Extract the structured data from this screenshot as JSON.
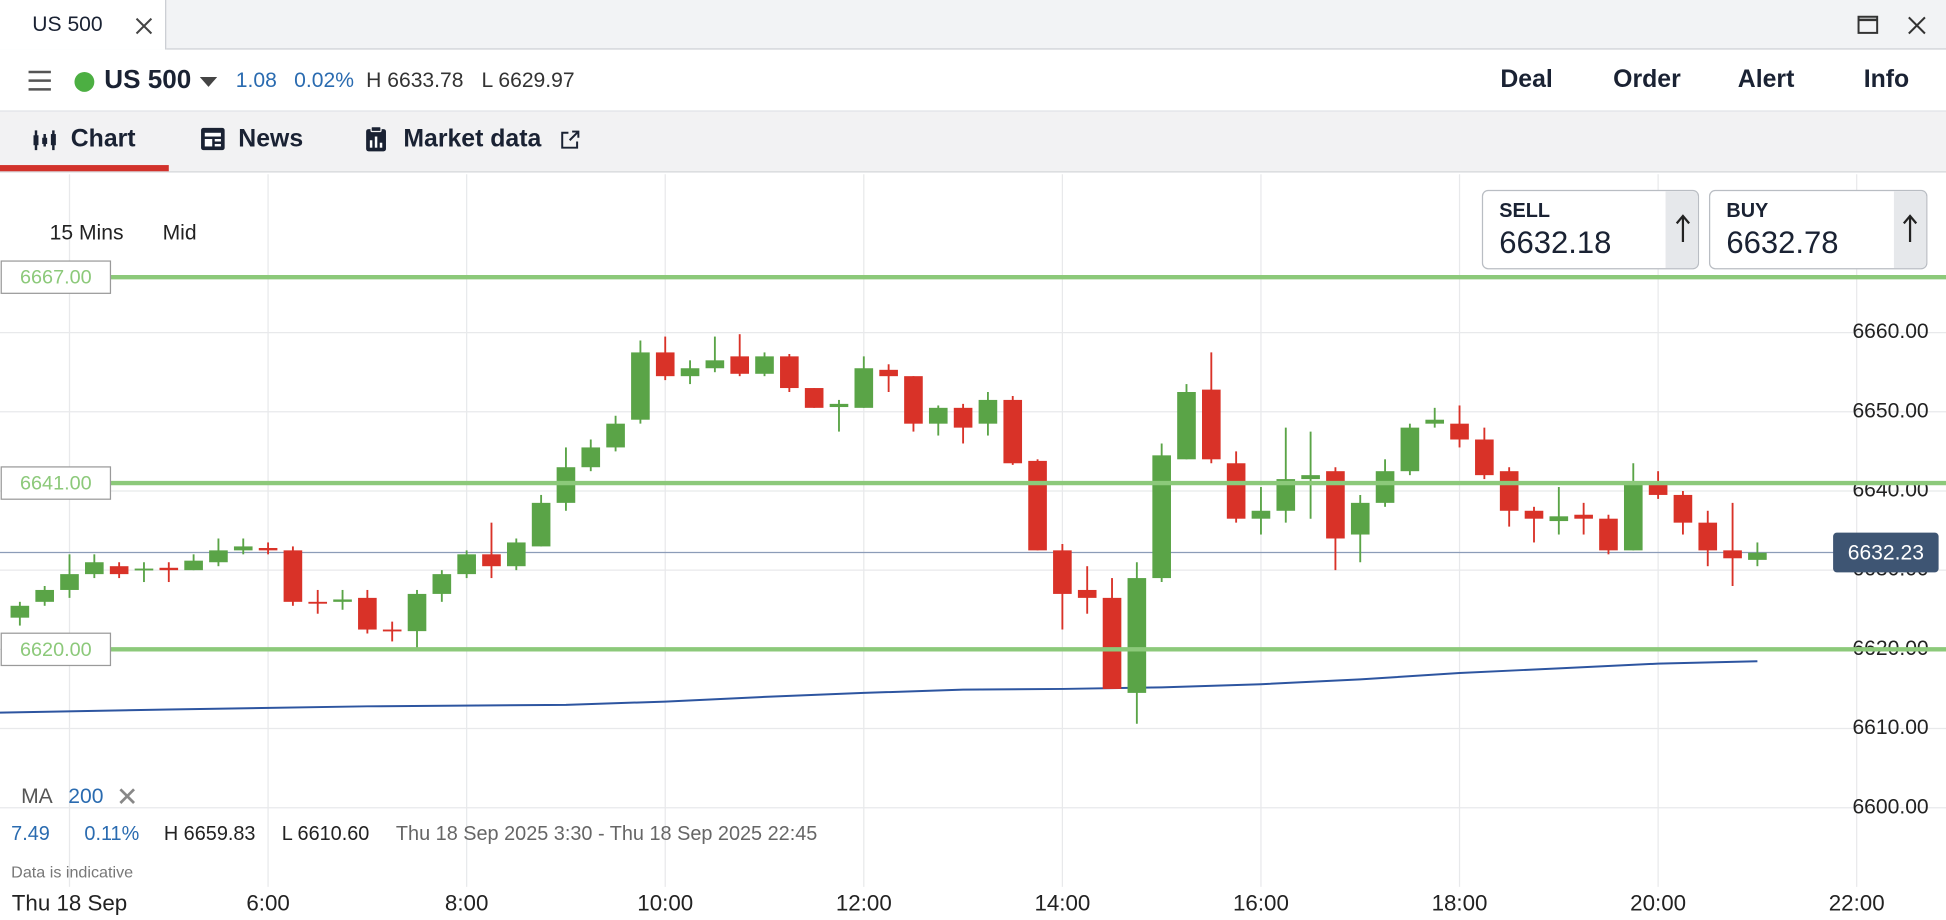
{
  "window_tab": {
    "title": "US 500"
  },
  "header": {
    "instrument": "US 500",
    "change": "1.08",
    "change_pct": "0.02%",
    "high": "H 6633.78",
    "low": "L 6629.97",
    "actions": [
      "Deal",
      "Order",
      "Alert",
      "Info"
    ]
  },
  "tabs": [
    "Chart",
    "News",
    "Market data"
  ],
  "toolbar": {
    "interval": "15 Mins",
    "price_type": "Mid"
  },
  "quotes": {
    "sell_label": "SELL",
    "sell": "6632.18",
    "buy_label": "BUY",
    "buy": "6632.78"
  },
  "indicator": {
    "name": "MA",
    "period": "200"
  },
  "stats": {
    "change": "7.49",
    "change_pct": "0.11%",
    "high": "H 6659.83",
    "low": "L 6610.60",
    "range": "Thu 18 Sep 2025 3:30 - Thu 18 Sep 2025 22:45"
  },
  "disclaimer": "Data is indicative",
  "chart_data": {
    "type": "candlestick",
    "up_color": "#5aa447",
    "down_color": "#d93228",
    "x": [
      3.5,
      3.75,
      4,
      4.25,
      4.5,
      4.75,
      5,
      5.25,
      5.5,
      5.75,
      6,
      6.25,
      6.5,
      6.75,
      7,
      7.25,
      7.5,
      7.75,
      8,
      8.25,
      8.5,
      8.75,
      9,
      9.25,
      9.5,
      9.75,
      10,
      10.25,
      10.5,
      10.75,
      11,
      11.25,
      11.5,
      11.75,
      12,
      12.25,
      12.5,
      12.75,
      13,
      13.25,
      13.5,
      13.75,
      14,
      14.25,
      14.5,
      14.75,
      15,
      15.25,
      15.5,
      15.75,
      16,
      16.25,
      16.5,
      16.75,
      17,
      17.25,
      17.5,
      17.75,
      18,
      18.25,
      18.5,
      18.75,
      19,
      19.25,
      19.5,
      19.75,
      20,
      20.25,
      20.5,
      20.75,
      21
    ],
    "open": [
      6624,
      6626,
      6627.5,
      6629.5,
      6630.5,
      6630,
      6630.3,
      6630,
      6631,
      6632.5,
      6632.8,
      6632.5,
      6626,
      6626,
      6626.5,
      6622.5,
      6622.3,
      6627,
      6629.5,
      6632,
      6630.5,
      6633,
      6638.5,
      6643,
      6645.5,
      6649,
      6657.5,
      6654.5,
      6655.5,
      6657,
      6654.8,
      6657,
      6653,
      6650.6,
      6650.5,
      6655.3,
      6654.5,
      6648.5,
      6650.5,
      6648.5,
      6651.5,
      6643.8,
      6632.5,
      6627.5,
      6626.5,
      6614.5,
      6629,
      6644,
      6652.8,
      6643.5,
      6636.5,
      6637.5,
      6641.5,
      6642.5,
      6634.5,
      6638.5,
      6642.5,
      6648.5,
      6648.5,
      6646.5,
      6642.5,
      6637.5,
      6636.2,
      6637,
      6636.5,
      6632.5,
      6640.8,
      6639.5,
      6636,
      6632.5,
      6631.3
    ],
    "high": [
      6626,
      6628,
      6632,
      6632,
      6631,
      6631,
      6631,
      6632,
      6634,
      6634,
      6633.5,
      6633,
      6627.5,
      6627.5,
      6627.5,
      6623.5,
      6627.5,
      6630,
      6632.5,
      6636,
      6634,
      6639.5,
      6645.5,
      6646.5,
      6649.5,
      6659,
      6659.5,
      6656.5,
      6659.5,
      6659.8,
      6657.5,
      6657.3,
      6653,
      6651.5,
      6657,
      6656,
      6654.5,
      6650.8,
      6651,
      6652.5,
      6652,
      6644,
      6633.3,
      6630.5,
      6629,
      6631,
      6646,
      6653.5,
      6657.5,
      6645,
      6640.5,
      6648,
      6647.5,
      6643,
      6639.5,
      6644,
      6648.5,
      6650.5,
      6650.8,
      6648,
      6643,
      6638,
      6640.5,
      6638.5,
      6637,
      6643.5,
      6642.5,
      6640,
      6637.5,
      6638.5,
      6633.5
    ],
    "low": [
      6623,
      6625.5,
      6626.5,
      6629,
      6629,
      6628.5,
      6628.5,
      6630,
      6630.5,
      6632,
      6632,
      6625.5,
      6624.5,
      6625,
      6622,
      6621,
      6620,
      6626,
      6629,
      6629,
      6630,
      6633,
      6637.5,
      6642.5,
      6645,
      6648.5,
      6654,
      6653.5,
      6655,
      6654.5,
      6654.5,
      6652.5,
      6650.5,
      6647.5,
      6650.5,
      6652.5,
      6647.5,
      6647,
      6646,
      6647,
      6643.3,
      6632.5,
      6622.5,
      6624.5,
      6615,
      6610.6,
      6628.5,
      6644,
      6643.5,
      6636,
      6634.5,
      6636,
      6636.5,
      6630,
      6631,
      6638,
      6642,
      6648,
      6645.5,
      6641.5,
      6635.5,
      6633.5,
      6634.5,
      6634.5,
      6632,
      6632.5,
      6639,
      6634.5,
      6630.5,
      6628,
      6630.5
    ],
    "close": [
      6625.5,
      6627.5,
      6629.5,
      6631,
      6629.5,
      6630.2,
      6630,
      6631.2,
      6632.5,
      6633,
      6632.5,
      6626,
      6625.8,
      6626.3,
      6622.5,
      6622.3,
      6627,
      6629.5,
      6632,
      6630.5,
      6633.5,
      6638.5,
      6643,
      6645.5,
      6648.5,
      6657.5,
      6654.5,
      6655.5,
      6656.5,
      6654.8,
      6657,
      6653,
      6650.5,
      6651,
      6655.5,
      6654.5,
      6648.5,
      6650.5,
      6648,
      6651.5,
      6643.5,
      6632.5,
      6627,
      6626.5,
      6615,
      6629,
      6644.5,
      6652.5,
      6644,
      6636.5,
      6637.5,
      6641.5,
      6642,
      6634,
      6638.5,
      6642.5,
      6648,
      6649,
      6646.5,
      6642,
      6637.5,
      6636.5,
      6636.8,
      6636.5,
      6632.5,
      6640.8,
      6639.5,
      6636,
      6632.5,
      6631.5,
      6632.2
    ],
    "ma": {
      "color": "#2d55a0",
      "x": [
        3.3,
        5,
        7,
        9,
        10,
        11,
        12,
        13,
        14,
        15,
        16,
        17,
        18,
        19,
        20,
        21
      ],
      "values": [
        6612.0,
        6612.4,
        6612.8,
        6613.0,
        6613.4,
        6614.0,
        6614.5,
        6614.9,
        6615.0,
        6615.2,
        6615.6,
        6616.2,
        6617.0,
        6617.6,
        6618.2,
        6618.5
      ]
    },
    "levels": [
      {
        "value": 6667,
        "label": "6667.00"
      },
      {
        "value": 6641,
        "label": "6641.00"
      },
      {
        "value": 6620,
        "label": "6620.00"
      }
    ],
    "level_color": "#8cc97a",
    "current_price": {
      "value": 6632.23,
      "label": "6632.23"
    },
    "xlim": [
      3.3,
      22.9
    ],
    "ylim": [
      6590,
      6680
    ],
    "xticks": [
      {
        "value": 4,
        "label": "Thu 18 Sep"
      },
      {
        "value": 6,
        "label": "6:00"
      },
      {
        "value": 8,
        "label": "8:00"
      },
      {
        "value": 10,
        "label": "10:00"
      },
      {
        "value": 12,
        "label": "12:00"
      },
      {
        "value": 14,
        "label": "14:00"
      },
      {
        "value": 16,
        "label": "16:00"
      },
      {
        "value": 18,
        "label": "18:00"
      },
      {
        "value": 20,
        "label": "20:00"
      },
      {
        "value": 22,
        "label": "22:00"
      }
    ],
    "yticks": [
      {
        "value": 6600,
        "label": "6600.00"
      },
      {
        "value": 6610,
        "label": "6610.00"
      },
      {
        "value": 6620,
        "label": "6620.00"
      },
      {
        "value": 6630,
        "label": "6630.00"
      },
      {
        "value": 6640,
        "label": "6640.00"
      },
      {
        "value": 6650,
        "label": "6650.00"
      },
      {
        "value": 6660,
        "label": "6660.00"
      }
    ],
    "grid": true
  }
}
